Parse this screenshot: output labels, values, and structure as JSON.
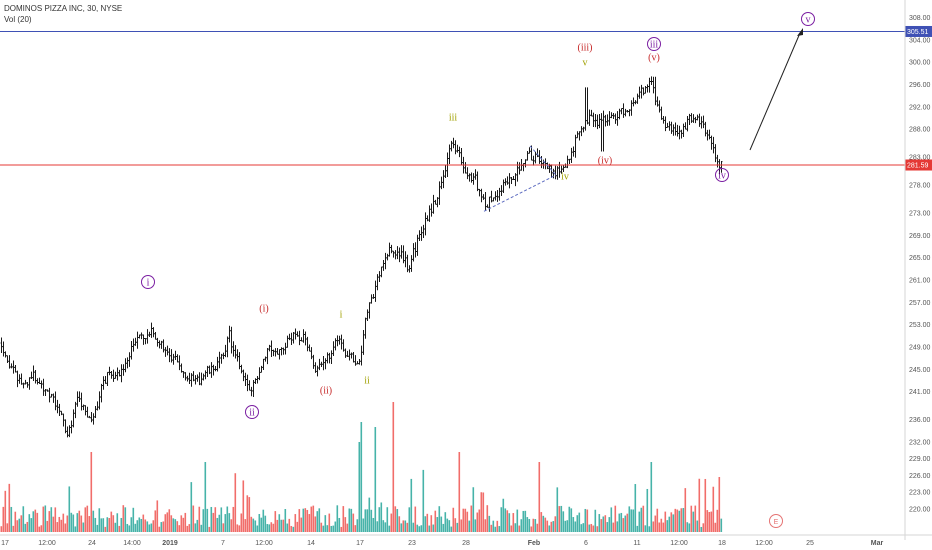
{
  "header": {
    "symbol_title": "DOMINOS PIZZA INC, 30, NYSE",
    "volume_label": "Vol (20)"
  },
  "colors": {
    "up": "#26a69a",
    "down": "#ef5350",
    "bar_ink": "#1a1a1a",
    "target_line": "#3f51b5",
    "price_line": "#e53935",
    "wave_purple": "#7b1fa2",
    "wave_red": "#c62828",
    "wave_olive": "#a0a000"
  },
  "chart_data": {
    "type": "ohlc",
    "price_scale": {
      "ylim": [
        218,
        309
      ],
      "tick_labels": [
        "308.00",
        "304.00",
        "300.00",
        "296.00",
        "292.00",
        "288.00",
        "283.00",
        "278.00",
        "273.00",
        "269.00",
        "265.00",
        "261.00",
        "257.00",
        "253.00",
        "249.00",
        "245.00",
        "241.00",
        "236.00",
        "232.00",
        "229.00",
        "226.00",
        "223.00",
        "220.00"
      ]
    },
    "price_lines": [
      {
        "label": "305.51",
        "value": 305.51
      },
      {
        "label": "281.59",
        "value": 281.59
      }
    ],
    "time_axis": {
      "labels": [
        "17",
        "12:00",
        "24",
        "14:00",
        "2019",
        "7",
        "12:00",
        "14",
        "17",
        "23",
        "28",
        "Feb",
        "6",
        "11",
        "12:00",
        "18",
        "12:00",
        "25",
        "Mar"
      ],
      "bold": [
        "2019",
        "Feb",
        "Mar"
      ]
    },
    "price_path": [
      [
        0,
        250.2
      ],
      [
        8,
        246.2
      ],
      [
        16,
        243.6
      ],
      [
        24,
        242.1
      ],
      [
        32,
        244.1
      ],
      [
        40,
        242.3
      ],
      [
        48,
        241.1
      ],
      [
        56,
        238.4
      ],
      [
        62,
        236.0
      ],
      [
        68,
        233.1
      ],
      [
        72,
        236.5
      ],
      [
        78,
        240.1
      ],
      [
        84,
        237.4
      ],
      [
        90,
        235.5
      ],
      [
        95,
        237.5
      ],
      [
        100,
        240.9
      ],
      [
        108,
        244.6
      ],
      [
        116,
        243.8
      ],
      [
        124,
        245.2
      ],
      [
        130,
        248.4
      ],
      [
        136,
        250.2
      ],
      [
        140,
        251.1
      ],
      [
        146,
        250.2
      ],
      [
        152,
        251.8
      ],
      [
        158,
        249.8
      ],
      [
        164,
        249.1
      ],
      [
        170,
        246.3
      ],
      [
        176,
        247.0
      ],
      [
        182,
        244.6
      ],
      [
        188,
        243.9
      ],
      [
        194,
        242.5
      ],
      [
        200,
        243.2
      ],
      [
        206,
        244.6
      ],
      [
        212,
        244.8
      ],
      [
        218,
        246.4
      ],
      [
        224,
        247.3
      ],
      [
        228,
        252.5
      ],
      [
        232,
        248.4
      ],
      [
        238,
        246.2
      ],
      [
        244,
        243.6
      ],
      [
        250,
        240.6
      ],
      [
        256,
        243.5
      ],
      [
        262,
        246.4
      ],
      [
        268,
        249.1
      ],
      [
        274,
        248.6
      ],
      [
        280,
        247.9
      ],
      [
        286,
        249.8
      ],
      [
        292,
        251.1
      ],
      [
        298,
        250.1
      ],
      [
        304,
        251.6
      ],
      [
        310,
        247.3
      ],
      [
        316,
        244.8
      ],
      [
        322,
        245.7
      ],
      [
        328,
        247.2
      ],
      [
        334,
        250.0
      ],
      [
        340,
        250.6
      ],
      [
        346,
        247.3
      ],
      [
        350,
        247.9
      ],
      [
        356,
        246.2
      ],
      [
        360,
        245.7
      ],
      [
        364,
        253.4
      ],
      [
        368,
        256.8
      ],
      [
        372,
        257.6
      ],
      [
        378,
        261.7
      ],
      [
        384,
        265.0
      ],
      [
        390,
        266.4
      ],
      [
        396,
        265.3
      ],
      [
        402,
        265.7
      ],
      [
        408,
        262.8
      ],
      [
        414,
        266.4
      ],
      [
        420,
        269.2
      ],
      [
        426,
        271.9
      ],
      [
        432,
        274.2
      ],
      [
        438,
        276.4
      ],
      [
        444,
        280.6
      ],
      [
        450,
        285.0
      ],
      [
        456,
        284.6
      ],
      [
        462,
        281.4
      ],
      [
        468,
        279.3
      ],
      [
        474,
        279.7
      ],
      [
        480,
        276.2
      ],
      [
        486,
        274.4
      ],
      [
        492,
        275.8
      ],
      [
        498,
        276.2
      ],
      [
        504,
        278.6
      ],
      [
        510,
        279.0
      ],
      [
        516,
        280.1
      ],
      [
        520,
        281.8
      ],
      [
        526,
        283.5
      ],
      [
        532,
        283.1
      ],
      [
        538,
        282.8
      ],
      [
        544,
        281.7
      ],
      [
        550,
        280.9
      ],
      [
        556,
        280.1
      ],
      [
        562,
        281.7
      ],
      [
        568,
        282.2
      ],
      [
        574,
        285.3
      ],
      [
        580,
        287.6
      ],
      [
        586,
        289.0
      ],
      [
        592,
        290.4
      ],
      [
        596,
        289.1
      ],
      [
        600,
        289.4
      ],
      [
        606,
        290.3
      ],
      [
        612,
        289.6
      ],
      [
        618,
        290.8
      ],
      [
        624,
        291.4
      ],
      [
        630,
        292.2
      ],
      [
        636,
        293.3
      ],
      [
        642,
        294.9
      ],
      [
        648,
        295.7
      ],
      [
        652,
        295.9
      ],
      [
        656,
        293.0
      ],
      [
        660,
        290.0
      ],
      [
        666,
        288.5
      ],
      [
        672,
        287.9
      ],
      [
        678,
        287.2
      ],
      [
        684,
        288.4
      ],
      [
        690,
        290.2
      ],
      [
        696,
        290.1
      ],
      [
        702,
        288.9
      ],
      [
        708,
        286.6
      ],
      [
        714,
        283.4
      ],
      [
        720,
        281.5
      ]
    ],
    "price_noise": [
      {
        "x": 602,
        "low": 284.0
      },
      {
        "x": 586,
        "high": 295.5
      },
      {
        "x": 654,
        "high": 297.4
      }
    ],
    "volume_scale": {
      "max_units": 100
    },
    "waves": [
      {
        "text": "i",
        "style": "circle",
        "color": "wave_purple",
        "x": 148,
        "y": 282
      },
      {
        "text": "ii",
        "style": "circle",
        "color": "wave_purple",
        "x": 252,
        "y": 412
      },
      {
        "text": "iii",
        "style": "circle",
        "color": "wave_purple",
        "x": 654,
        "y": 44
      },
      {
        "text": "iv",
        "style": "circle",
        "color": "wave_purple",
        "x": 722,
        "y": 175
      },
      {
        "text": "v",
        "style": "circle",
        "color": "wave_purple",
        "x": 808,
        "y": 19
      },
      {
        "text": "(i)",
        "style": "text",
        "color": "wave_red",
        "x": 264,
        "y": 308
      },
      {
        "text": "(ii)",
        "style": "text",
        "color": "wave_red",
        "x": 326,
        "y": 390
      },
      {
        "text": "(iii)",
        "style": "text",
        "color": "wave_red",
        "x": 585,
        "y": 47
      },
      {
        "text": "(iv)",
        "style": "text",
        "color": "wave_red",
        "x": 605,
        "y": 160
      },
      {
        "text": "(v)",
        "style": "text",
        "color": "wave_red",
        "x": 654,
        "y": 57
      },
      {
        "text": "i",
        "style": "text",
        "color": "wave_olive",
        "x": 341,
        "y": 314
      },
      {
        "text": "ii",
        "style": "text",
        "color": "wave_olive",
        "x": 367,
        "y": 380
      },
      {
        "text": "iii",
        "style": "text",
        "color": "wave_olive",
        "x": 453,
        "y": 117
      },
      {
        "text": "iv",
        "style": "text",
        "color": "wave_olive",
        "x": 565,
        "y": 176
      },
      {
        "text": "v",
        "style": "text",
        "color": "wave_olive",
        "x": 585,
        "y": 62
      }
    ],
    "earnings_marker": "E"
  }
}
